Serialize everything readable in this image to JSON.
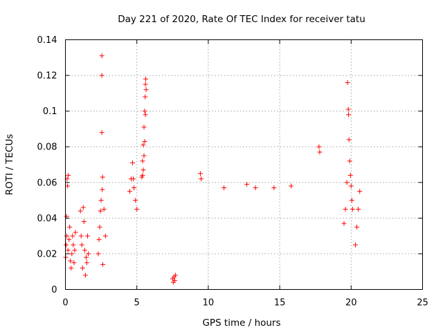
{
  "chart_data": {
    "type": "scatter",
    "title": "Day 221 of 2020, Rate Of TEC Index for receiver tatu",
    "xlabel": "GPS time / hours",
    "ylabel": "ROTI / TECUs",
    "xlim": [
      0,
      25
    ],
    "ylim": [
      0,
      0.14
    ],
    "x_ticks": [
      0,
      5,
      10,
      15,
      20,
      25
    ],
    "x_tick_labels": [
      "0",
      "5",
      "10",
      "15",
      "20",
      "25"
    ],
    "y_ticks": [
      0,
      0.02,
      0.04,
      0.06,
      0.08,
      0.1,
      0.12,
      0.14
    ],
    "y_tick_labels": [
      "0",
      "0.02",
      "0.04",
      "0.06",
      "0.08",
      "0.1",
      "0.12",
      "0.14"
    ],
    "grid": true,
    "marker": "plus",
    "color": "#ff0000",
    "series": [
      {
        "points": [
          [
            0.02,
            0.018
          ],
          [
            0.05,
            0.025
          ],
          [
            0.08,
            0.041
          ],
          [
            0.1,
            0.03
          ],
          [
            0.12,
            0.062
          ],
          [
            0.15,
            0.058
          ],
          [
            0.18,
            0.022
          ],
          [
            0.2,
            0.064
          ],
          [
            0.25,
            0.028
          ],
          [
            0.3,
            0.035
          ],
          [
            0.35,
            0.016
          ],
          [
            0.4,
            0.012
          ],
          [
            0.45,
            0.02
          ],
          [
            0.5,
            0.03
          ],
          [
            0.55,
            0.025
          ],
          [
            0.6,
            0.015
          ],
          [
            0.65,
            0.022
          ],
          [
            0.7,
            0.032
          ],
          [
            1.05,
            0.044
          ],
          [
            1.1,
            0.03
          ],
          [
            1.15,
            0.025
          ],
          [
            1.2,
            0.012
          ],
          [
            1.25,
            0.046
          ],
          [
            1.3,
            0.038
          ],
          [
            1.35,
            0.022
          ],
          [
            1.4,
            0.008
          ],
          [
            1.45,
            0.018
          ],
          [
            1.5,
            0.015
          ],
          [
            1.55,
            0.03
          ],
          [
            1.6,
            0.02
          ],
          [
            2.55,
            0.131
          ],
          [
            2.55,
            0.12
          ],
          [
            2.55,
            0.088
          ],
          [
            2.6,
            0.063
          ],
          [
            2.58,
            0.056
          ],
          [
            2.5,
            0.05
          ],
          [
            2.45,
            0.044
          ],
          [
            2.4,
            0.035
          ],
          [
            2.35,
            0.028
          ],
          [
            2.3,
            0.02
          ],
          [
            2.62,
            0.014
          ],
          [
            2.7,
            0.045
          ],
          [
            2.8,
            0.03
          ],
          [
            4.5,
            0.055
          ],
          [
            4.6,
            0.062
          ],
          [
            4.7,
            0.071
          ],
          [
            4.75,
            0.062
          ],
          [
            4.8,
            0.057
          ],
          [
            4.9,
            0.05
          ],
          [
            5.0,
            0.045
          ],
          [
            5.35,
            0.063
          ],
          [
            5.4,
            0.072
          ],
          [
            5.45,
            0.081
          ],
          [
            5.5,
            0.091
          ],
          [
            5.55,
            0.1
          ],
          [
            5.58,
            0.108
          ],
          [
            5.6,
            0.115
          ],
          [
            5.62,
            0.118
          ],
          [
            5.65,
            0.112
          ],
          [
            5.6,
            0.098
          ],
          [
            5.55,
            0.083
          ],
          [
            5.5,
            0.075
          ],
          [
            5.45,
            0.067
          ],
          [
            5.4,
            0.064
          ],
          [
            9.45,
            0.065
          ],
          [
            9.5,
            0.062
          ],
          [
            11.1,
            0.057
          ],
          [
            12.7,
            0.059
          ],
          [
            13.3,
            0.057
          ],
          [
            14.6,
            0.057
          ],
          [
            15.8,
            0.058
          ],
          [
            17.75,
            0.08
          ],
          [
            17.8,
            0.077
          ],
          [
            19.5,
            0.037
          ],
          [
            19.6,
            0.045
          ],
          [
            19.7,
            0.06
          ],
          [
            19.75,
            0.116
          ],
          [
            19.8,
            0.101
          ],
          [
            19.82,
            0.098
          ],
          [
            19.85,
            0.084
          ],
          [
            19.9,
            0.072
          ],
          [
            19.95,
            0.064
          ],
          [
            20.0,
            0.058
          ],
          [
            20.05,
            0.05
          ],
          [
            20.1,
            0.045
          ],
          [
            7.5,
            0.006
          ],
          [
            7.55,
            0.004
          ],
          [
            7.6,
            0.007
          ],
          [
            7.65,
            0.005
          ],
          [
            7.7,
            0.008
          ],
          [
            20.6,
            0.055
          ],
          [
            20.5,
            0.045
          ],
          [
            20.4,
            0.035
          ],
          [
            20.3,
            0.025
          ]
        ]
      }
    ]
  }
}
